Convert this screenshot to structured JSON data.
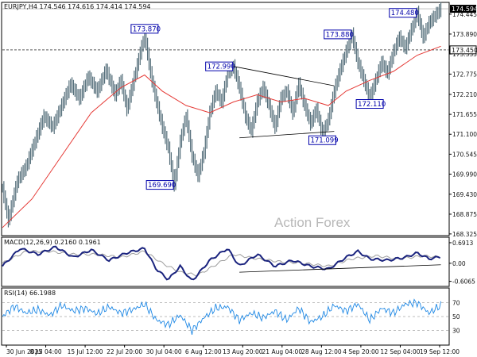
{
  "chart_data": [
    {
      "type": "line",
      "instrument_label": "EURJPY,H4  174.546 174.616 174.414 174.594",
      "watermark": "Action Forex",
      "y_ticks": [
        "174.445",
        "173.890",
        "173.335",
        "172.775",
        "172.210",
        "171.655",
        "171.100",
        "170.545",
        "169.990",
        "169.430",
        "168.875",
        "168.325"
      ],
      "y_tick_values": [
        174.445,
        173.89,
        173.335,
        172.775,
        172.21,
        171.655,
        171.1,
        170.545,
        169.99,
        169.43,
        168.875,
        168.325
      ],
      "ylim": [
        168.3,
        174.75
      ],
      "x_ticks": [
        "30 Jun 2025",
        "8 Jul 04:00",
        "15 Jul 12:00",
        "22 Jul 20:00",
        "30 Jul 04:00",
        "6 Aug 12:00",
        "13 Aug 20:00",
        "21 Aug 04:00",
        "28 Aug 12:00",
        "4 Sep 20:00",
        "12 Sep 04:00",
        "19 Sep 12:00"
      ],
      "series": [
        {
          "role": "price",
          "color": "#546e7a",
          "points": [
            [
              0,
              169.6
            ],
            [
              2,
              168.7
            ],
            [
              5,
              169.8
            ],
            [
              8,
              170.2
            ],
            [
              11,
              170.9
            ],
            [
              14,
              171.6
            ],
            [
              17,
              171.3
            ],
            [
              20,
              171.9
            ],
            [
              23,
              172.5
            ],
            [
              26,
              172.1
            ],
            [
              29,
              172.7
            ],
            [
              32,
              172.3
            ],
            [
              35,
              172.9
            ],
            [
              38,
              172.2
            ],
            [
              40,
              172.6
            ],
            [
              42,
              171.8
            ],
            [
              44,
              172.5
            ],
            [
              46,
              173.2
            ],
            [
              48,
              173.87
            ],
            [
              50,
              172.8
            ],
            [
              52,
              172.0
            ],
            [
              54,
              171.3
            ],
            [
              56,
              170.7
            ],
            [
              58,
              169.69
            ],
            [
              60,
              170.9
            ],
            [
              62,
              171.6
            ],
            [
              64,
              170.5
            ],
            [
              66,
              169.95
            ],
            [
              68,
              170.6
            ],
            [
              70,
              171.7
            ],
            [
              72,
              172.3
            ],
            [
              74,
              172.0
            ],
            [
              76,
              172.8
            ],
            [
              78,
              172.99
            ],
            [
              80,
              172.4
            ],
            [
              82,
              171.6
            ],
            [
              84,
              171.2
            ],
            [
              86,
              172.0
            ],
            [
              88,
              172.4
            ],
            [
              90,
              171.9
            ],
            [
              92,
              171.3
            ],
            [
              94,
              172.1
            ],
            [
              96,
              172.3
            ],
            [
              98,
              171.7
            ],
            [
              100,
              172.5
            ],
            [
              102,
              171.9
            ],
            [
              104,
              171.4
            ],
            [
              106,
              171.8
            ],
            [
              108,
              171.1
            ],
            [
              110,
              171.5
            ],
            [
              112,
              172.3
            ],
            [
              114,
              172.9
            ],
            [
              116,
              173.4
            ],
            [
              118,
              173.88
            ],
            [
              120,
              173.1
            ],
            [
              122,
              172.6
            ],
            [
              124,
              172.11
            ],
            [
              126,
              172.6
            ],
            [
              128,
              173.1
            ],
            [
              130,
              172.8
            ],
            [
              132,
              173.4
            ],
            [
              134,
              173.8
            ],
            [
              136,
              173.5
            ],
            [
              138,
              174.0
            ],
            [
              140,
              174.48
            ],
            [
              142,
              173.8
            ],
            [
              144,
              174.2
            ],
            [
              146,
              174.4
            ],
            [
              148,
              174.594
            ]
          ]
        },
        {
          "role": "moving-average",
          "color": "#e53935",
          "points": [
            [
              0,
              168.5
            ],
            [
              10,
              169.3
            ],
            [
              20,
              170.5
            ],
            [
              30,
              171.7
            ],
            [
              40,
              172.4
            ],
            [
              48,
              172.75
            ],
            [
              54,
              172.3
            ],
            [
              62,
              171.9
            ],
            [
              70,
              171.7
            ],
            [
              78,
              172.0
            ],
            [
              86,
              172.2
            ],
            [
              94,
              172.0
            ],
            [
              102,
              172.1
            ],
            [
              110,
              171.9
            ],
            [
              116,
              172.3
            ],
            [
              124,
              172.6
            ],
            [
              132,
              172.85
            ],
            [
              140,
              173.3
            ],
            [
              148,
              173.55
            ]
          ]
        }
      ],
      "annotations": [
        {
          "text": "173.870",
          "x": 48,
          "y": 173.87,
          "anchor": "above"
        },
        {
          "text": "172.990",
          "x": 78,
          "y": 172.99,
          "anchor": "left"
        },
        {
          "text": "169.690",
          "x": 58,
          "y": 169.69,
          "anchor": "left"
        },
        {
          "text": "171.099",
          "x": 108,
          "y": 171.1,
          "anchor": "below"
        },
        {
          "text": "173.880",
          "x": 118,
          "y": 173.88,
          "anchor": "left"
        },
        {
          "text": "172.110",
          "x": 124,
          "y": 172.11,
          "anchor": "below"
        },
        {
          "text": "174.480",
          "x": 140,
          "y": 174.48,
          "anchor": "left"
        }
      ],
      "trendlines": [
        {
          "from": [
            78,
            172.99
          ],
          "to": [
            112,
            172.45
          ]
        },
        {
          "from": [
            80,
            171.0
          ],
          "to": [
            112,
            171.18
          ]
        }
      ],
      "horizontal_level": {
        "value": 173.45,
        "label": "173.450"
      },
      "current_price": {
        "value": 174.594,
        "label": "174.594"
      }
    },
    {
      "type": "line",
      "label": "MACD(12,26,9) 0.2160 0.1961",
      "y_ticks": [
        "0.6913",
        "0.00",
        "-0.6065"
      ],
      "y_tick_values": [
        0.6913,
        0.0,
        -0.6065
      ],
      "ylim": [
        -0.75,
        0.85
      ],
      "series": [
        {
          "role": "macd",
          "color": "#1a237e",
          "points": [
            [
              0,
              -0.1
            ],
            [
              6,
              0.5
            ],
            [
              12,
              0.3
            ],
            [
              18,
              0.55
            ],
            [
              24,
              0.2
            ],
            [
              30,
              0.45
            ],
            [
              36,
              0.1
            ],
            [
              42,
              0.35
            ],
            [
              48,
              0.5
            ],
            [
              52,
              -0.2
            ],
            [
              56,
              -0.55
            ],
            [
              60,
              -0.1
            ],
            [
              64,
              -0.6
            ],
            [
              70,
              0.1
            ],
            [
              76,
              0.5
            ],
            [
              80,
              -0.1
            ],
            [
              86,
              0.3
            ],
            [
              92,
              -0.1
            ],
            [
              98,
              0.1
            ],
            [
              104,
              -0.1
            ],
            [
              110,
              -0.2
            ],
            [
              116,
              0.2
            ],
            [
              120,
              0.4
            ],
            [
              124,
              0.15
            ],
            [
              130,
              0.1
            ],
            [
              136,
              0.2
            ],
            [
              140,
              0.35
            ],
            [
              144,
              0.15
            ],
            [
              148,
              0.22
            ]
          ]
        },
        {
          "role": "signal",
          "color": "#9e9e9e",
          "points": [
            [
              0,
              0.0
            ],
            [
              8,
              0.4
            ],
            [
              16,
              0.4
            ],
            [
              24,
              0.3
            ],
            [
              32,
              0.3
            ],
            [
              40,
              0.2
            ],
            [
              48,
              0.4
            ],
            [
              54,
              0.0
            ],
            [
              60,
              -0.3
            ],
            [
              66,
              -0.4
            ],
            [
              72,
              -0.05
            ],
            [
              78,
              0.3
            ],
            [
              86,
              0.15
            ],
            [
              94,
              0.05
            ],
            [
              102,
              0.0
            ],
            [
              110,
              -0.1
            ],
            [
              118,
              0.15
            ],
            [
              126,
              0.25
            ],
            [
              134,
              0.15
            ],
            [
              142,
              0.25
            ],
            [
              148,
              0.2
            ]
          ]
        }
      ],
      "trendline": {
        "from": [
          80,
          -0.3
        ],
        "to": [
          148,
          -0.05
        ]
      }
    },
    {
      "type": "line",
      "label": "RSI(14) 66.1988",
      "y_ticks": [
        "70",
        "50",
        "30"
      ],
      "y_tick_values": [
        70,
        50,
        30
      ],
      "ylim": [
        10,
        90
      ],
      "series": [
        {
          "role": "rsi",
          "color": "#1e88e5",
          "points": [
            [
              0,
              50
            ],
            [
              4,
              65
            ],
            [
              8,
              55
            ],
            [
              12,
              60
            ],
            [
              16,
              52
            ],
            [
              20,
              66
            ],
            [
              24,
              58
            ],
            [
              28,
              62
            ],
            [
              32,
              54
            ],
            [
              36,
              64
            ],
            [
              40,
              55
            ],
            [
              44,
              60
            ],
            [
              48,
              68
            ],
            [
              52,
              45
            ],
            [
              56,
              38
            ],
            [
              60,
              52
            ],
            [
              64,
              30
            ],
            [
              68,
              48
            ],
            [
              72,
              62
            ],
            [
              76,
              64
            ],
            [
              80,
              45
            ],
            [
              84,
              55
            ],
            [
              88,
              48
            ],
            [
              92,
              58
            ],
            [
              96,
              45
            ],
            [
              100,
              62
            ],
            [
              104,
              42
            ],
            [
              108,
              50
            ],
            [
              112,
              66
            ],
            [
              116,
              58
            ],
            [
              120,
              68
            ],
            [
              124,
              45
            ],
            [
              128,
              62
            ],
            [
              132,
              55
            ],
            [
              136,
              68
            ],
            [
              140,
              70
            ],
            [
              144,
              55
            ],
            [
              148,
              66
            ]
          ]
        }
      ]
    }
  ]
}
